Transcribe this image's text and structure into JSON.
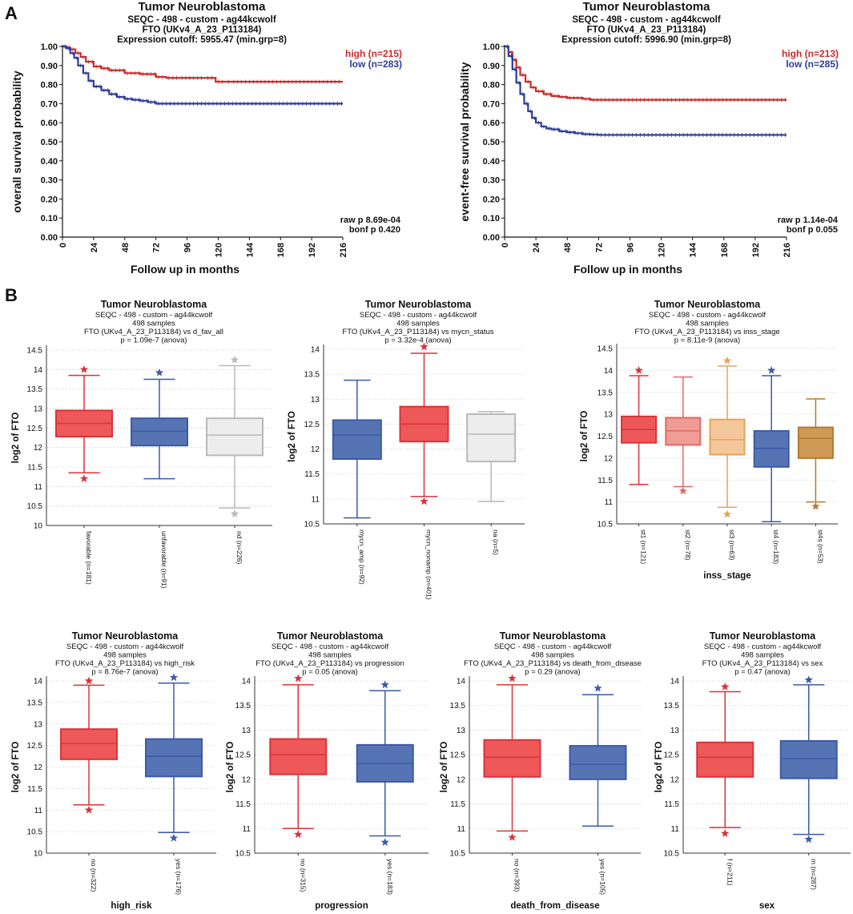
{
  "panel_labels": [
    "A",
    "B"
  ],
  "colors": {
    "red": "#cc2b2b",
    "blue": "#2e3c96",
    "title": "#111111",
    "box_red_fill": "#ee5858",
    "box_red_stroke": "#d8343a",
    "box_blue_fill": "#5674b4",
    "box_blue_stroke": "#3b5aa8",
    "box_gray_fill": "#ededed",
    "box_gray_stroke": "#b9b9b9",
    "box_pink_fill": "#ef9c96",
    "box_pink_stroke": "#e06a66",
    "box_peach_fill": "#f4c79b",
    "box_peach_stroke": "#e5a457",
    "box_gold_fill": "#cf9a55",
    "box_gold_stroke": "#b57a30",
    "grid": "#d9d9d9"
  },
  "chart_data": [
    {
      "type": "line",
      "id": "km1",
      "title": "Tumor Neuroblastoma",
      "subtitle_lines": [
        "SEQC - 498 - custom - ag44kcwolf",
        "FTO (UKv4_A_23_P113184)",
        "Expression cutoff: 5955.47 (min.grp=8)"
      ],
      "xlabel": "Follow up in months",
      "ylabel": "overall survival probability",
      "xlim": [
        0,
        216
      ],
      "ylim": [
        0,
        1
      ],
      "xticks": [
        "0",
        "24",
        "48",
        "72",
        "96",
        "120",
        "144",
        "168",
        "192",
        "216"
      ],
      "yticks": [
        "0.00",
        "0.10",
        "0.20",
        "0.30",
        "0.40",
        "0.50",
        "0.60",
        "0.70",
        "0.80",
        "0.90",
        "1.00"
      ],
      "series": [
        {
          "name": "high (n=215)",
          "color": "#cc2b2b",
          "x": [
            0,
            3,
            6,
            10,
            14,
            18,
            24,
            30,
            36,
            48,
            60,
            72,
            80,
            90,
            110,
            118,
            126,
            130,
            216
          ],
          "y": [
            1.0,
            0.995,
            0.985,
            0.965,
            0.945,
            0.92,
            0.895,
            0.885,
            0.875,
            0.86,
            0.855,
            0.84,
            0.835,
            0.835,
            0.835,
            0.815,
            0.815,
            0.815,
            0.815
          ]
        },
        {
          "name": "low (n=283)",
          "color": "#2e3c96",
          "x": [
            0,
            3,
            6,
            9,
            12,
            16,
            20,
            24,
            30,
            36,
            42,
            48,
            54,
            60,
            66,
            72,
            84,
            96,
            216
          ],
          "y": [
            1.0,
            0.99,
            0.965,
            0.94,
            0.9,
            0.86,
            0.82,
            0.79,
            0.77,
            0.75,
            0.735,
            0.725,
            0.72,
            0.715,
            0.708,
            0.7,
            0.7,
            0.7,
            0.7
          ]
        }
      ],
      "annotations": [
        "raw p 8.69e-04",
        "bonf p 0.420"
      ]
    },
    {
      "type": "line",
      "id": "km2",
      "title": "Tumor Neuroblastoma",
      "subtitle_lines": [
        "SEQC - 498 - custom - ag44kcwolf",
        "FTO (UKv4_A_23_P113184)",
        "Expression cutoff: 5996.90 (min.grp=8)"
      ],
      "xlabel": "Follow up in months",
      "ylabel": "event-free survival probability",
      "xlim": [
        0,
        216
      ],
      "ylim": [
        0,
        1
      ],
      "xticks": [
        "0",
        "24",
        "48",
        "72",
        "96",
        "120",
        "144",
        "168",
        "192",
        "216"
      ],
      "yticks": [
        "0.00",
        "0.10",
        "0.20",
        "0.30",
        "0.40",
        "0.50",
        "0.60",
        "0.70",
        "0.80",
        "0.90",
        "1.00"
      ],
      "series": [
        {
          "name": "high (n=213)",
          "color": "#cc2b2b",
          "x": [
            0,
            3,
            6,
            9,
            12,
            16,
            20,
            24,
            30,
            36,
            42,
            48,
            54,
            60,
            66,
            72,
            216
          ],
          "y": [
            1.0,
            0.97,
            0.93,
            0.89,
            0.85,
            0.815,
            0.785,
            0.765,
            0.75,
            0.74,
            0.735,
            0.73,
            0.73,
            0.725,
            0.72,
            0.72,
            0.72
          ]
        },
        {
          "name": "low (n=285)",
          "color": "#2e3c96",
          "x": [
            0,
            3,
            6,
            9,
            12,
            15,
            18,
            21,
            24,
            28,
            32,
            36,
            42,
            48,
            54,
            60,
            66,
            72,
            216
          ],
          "y": [
            1.0,
            0.95,
            0.88,
            0.81,
            0.75,
            0.7,
            0.66,
            0.625,
            0.6,
            0.58,
            0.57,
            0.565,
            0.555,
            0.55,
            0.545,
            0.54,
            0.538,
            0.536,
            0.536
          ]
        }
      ],
      "annotations": [
        "raw p 1.14e-04",
        "bonf p 0.055"
      ]
    },
    {
      "type": "box",
      "id": "b1",
      "title": "Tumor Neuroblastoma",
      "subtitle_lines": [
        "SEQC - 498 - custom - ag44kcwolf",
        "498 samples",
        "FTO (UKv4_A_23_P113184) vs d_fav_all",
        "p = 1.09e-7 (anova)"
      ],
      "ylabel": "log2 of FTO",
      "xlabel": "",
      "ylim": [
        10,
        14.5
      ],
      "yticks": [
        "10",
        "10.5",
        "11",
        "11.5",
        "12",
        "12.5",
        "13",
        "13.5",
        "14",
        "14.5"
      ],
      "categories": [
        "favorable (n=181)",
        "unfavorable (n=91)",
        "nd (n=226)"
      ],
      "boxes": [
        {
          "color": "red",
          "min": 11.35,
          "q1": 12.28,
          "median": 12.62,
          "q3": 12.95,
          "max": 13.85,
          "out_high": 14.0,
          "out_low": 11.2
        },
        {
          "color": "blue",
          "min": 11.2,
          "q1": 12.05,
          "median": 12.42,
          "q3": 12.75,
          "max": 13.75,
          "out_high": 13.92,
          "out_low": null
        },
        {
          "color": "gray",
          "min": 10.45,
          "q1": 11.8,
          "median": 12.32,
          "q3": 12.75,
          "max": 14.1,
          "out_high": 14.25,
          "out_low": 10.3
        }
      ]
    },
    {
      "type": "box",
      "id": "b2",
      "title": "Tumor Neuroblastoma",
      "subtitle_lines": [
        "SEQC - 498 - custom - ag44kcwolf",
        "498 samples",
        "FTO (UKv4_A_23_P113184) vs mycn_status",
        "p = 3.32e-4 (anova)"
      ],
      "ylabel": "log2 of FTO",
      "xlabel": "",
      "ylim": [
        10.5,
        14
      ],
      "yticks": [
        "10.5",
        "11",
        "11.5",
        "12",
        "12.5",
        "13",
        "13.5",
        "14"
      ],
      "categories": [
        "mycn_amp (n=92)",
        "mycn_nonamp (n=401)",
        "na (n=5)"
      ],
      "boxes": [
        {
          "color": "blue",
          "min": 10.62,
          "q1": 11.8,
          "median": 12.28,
          "q3": 12.58,
          "max": 13.38,
          "out_high": null,
          "out_low": null
        },
        {
          "color": "red",
          "min": 11.05,
          "q1": 12.15,
          "median": 12.5,
          "q3": 12.85,
          "max": 13.92,
          "out_high": 14.05,
          "out_low": 10.95
        },
        {
          "color": "gray",
          "min": 10.95,
          "q1": 11.75,
          "median": 12.3,
          "q3": 12.7,
          "max": 12.75,
          "out_high": null,
          "out_low": null
        }
      ]
    },
    {
      "type": "box",
      "id": "b3",
      "title": "Tumor Neuroblastoma",
      "subtitle_lines": [
        "SEQC - 498 - custom - ag44kcwolf",
        "498 samples",
        "FTO (UKv4_A_23_P113184) vs inss_stage",
        "p = 8.11e-9 (anova)"
      ],
      "ylabel": "log2 of FTO",
      "xlabel": "inss_stage",
      "ylim": [
        10.5,
        14.5
      ],
      "yticks": [
        "10.5",
        "11",
        "11.5",
        "12",
        "12.5",
        "13",
        "13.5",
        "14",
        "14.5"
      ],
      "categories": [
        "st1 (n=121)",
        "st2 (n=78)",
        "st3 (n=63)",
        "st4 (n=183)",
        "st4s (n=53)"
      ],
      "boxes": [
        {
          "color": "red",
          "min": 11.4,
          "q1": 12.35,
          "median": 12.65,
          "q3": 12.95,
          "max": 13.88,
          "out_high": 14.0,
          "out_low": null
        },
        {
          "color": "pink",
          "min": 11.35,
          "q1": 12.3,
          "median": 12.62,
          "q3": 12.92,
          "max": 13.85,
          "out_high": null,
          "out_low": 11.25
        },
        {
          "color": "peach",
          "min": 10.88,
          "q1": 12.08,
          "median": 12.42,
          "q3": 12.88,
          "max": 14.1,
          "out_high": 14.22,
          "out_low": 10.72
        },
        {
          "color": "blue",
          "min": 10.55,
          "q1": 11.8,
          "median": 12.22,
          "q3": 12.62,
          "max": 13.88,
          "out_high": 14.0,
          "out_low": null
        },
        {
          "color": "gold",
          "min": 11.0,
          "q1": 12.0,
          "median": 12.45,
          "q3": 12.7,
          "max": 13.35,
          "out_high": null,
          "out_low": 10.9
        }
      ]
    },
    {
      "type": "box",
      "id": "b4",
      "title": "Tumor Neuroblastoma",
      "subtitle_lines": [
        "SEQC - 498 - custom - ag44kcwolf",
        "498 samples",
        "FTO (UKv4_A_23_P113184) vs high_risk",
        "p = 8.76e-7 (anova)"
      ],
      "ylabel": "log2 of FTO",
      "xlabel": "high_risk",
      "ylim": [
        10,
        14
      ],
      "yticks": [
        "10",
        "10.5",
        "11",
        "11.5",
        "12",
        "12.5",
        "13",
        "13.5",
        "14"
      ],
      "categories": [
        "no (n=322)",
        "yes (n=176)"
      ],
      "boxes": [
        {
          "color": "red",
          "min": 11.12,
          "q1": 12.18,
          "median": 12.55,
          "q3": 12.88,
          "max": 13.9,
          "out_high": 14.0,
          "out_low": 11.0
        },
        {
          "color": "blue",
          "min": 10.48,
          "q1": 11.78,
          "median": 12.25,
          "q3": 12.65,
          "max": 13.95,
          "out_high": 14.08,
          "out_low": 10.35
        }
      ]
    },
    {
      "type": "box",
      "id": "b5",
      "title": "Tumor Neuroblastoma",
      "subtitle_lines": [
        "SEQC - 498 - custom - ag44kcwolf",
        "498 samples",
        "FTO (UKv4_A_23_P113184) vs progression",
        "p = 0.05 (anova)"
      ],
      "ylabel": "log2 of FTO",
      "xlabel": "progression",
      "ylim": [
        10.5,
        14
      ],
      "yticks": [
        "10.5",
        "11",
        "11.5",
        "12",
        "12.5",
        "13",
        "13.5",
        "14"
      ],
      "categories": [
        "no (n=315)",
        "yes (n=183)"
      ],
      "boxes": [
        {
          "color": "red",
          "min": 11.0,
          "q1": 12.1,
          "median": 12.5,
          "q3": 12.82,
          "max": 13.92,
          "out_high": 14.05,
          "out_low": 10.88
        },
        {
          "color": "blue",
          "min": 10.85,
          "q1": 11.95,
          "median": 12.32,
          "q3": 12.7,
          "max": 13.8,
          "out_high": 13.92,
          "out_low": 10.72
        }
      ]
    },
    {
      "type": "box",
      "id": "b6",
      "title": "Tumor Neuroblastoma",
      "subtitle_lines": [
        "SEQC - 498 - custom - ag44kcwolf",
        "498 samples",
        "FTO (UKv4_A_23_P113184) vs death_from_disease",
        "p = 0.29 (anova)"
      ],
      "ylabel": "log2 of FTO",
      "xlabel": "death_from_disease",
      "ylim": [
        10.5,
        14
      ],
      "yticks": [
        "10.5",
        "11",
        "11.5",
        "12",
        "12.5",
        "13",
        "13.5",
        "14"
      ],
      "categories": [
        "no (n=393)",
        "yes (n=105)"
      ],
      "boxes": [
        {
          "color": "red",
          "min": 10.95,
          "q1": 12.05,
          "median": 12.45,
          "q3": 12.8,
          "max": 13.92,
          "out_high": 14.05,
          "out_low": 10.82
        },
        {
          "color": "blue",
          "min": 11.05,
          "q1": 12.0,
          "median": 12.3,
          "q3": 12.68,
          "max": 13.72,
          "out_high": 13.85,
          "out_low": null
        }
      ]
    },
    {
      "type": "box",
      "id": "b7",
      "title": "Tumor Neuroblastoma",
      "subtitle_lines": [
        "SEQC - 498 - custom - ag44kcwolf",
        "498 samples",
        "FTO (UKv4_A_23_P113184) vs sex",
        "p = 0.47 (anova)"
      ],
      "ylabel": "log2 of FTO",
      "xlabel": "sex",
      "ylim": [
        10.5,
        14
      ],
      "yticks": [
        "10.5",
        "11",
        "11.5",
        "12",
        "12.5",
        "13",
        "13.5",
        "14"
      ],
      "categories": [
        "f (n=211)",
        "m (n=287)"
      ],
      "boxes": [
        {
          "color": "red",
          "min": 11.02,
          "q1": 12.05,
          "median": 12.45,
          "q3": 12.75,
          "max": 13.78,
          "out_high": 13.88,
          "out_low": 10.9
        },
        {
          "color": "blue",
          "min": 10.88,
          "q1": 12.02,
          "median": 12.42,
          "q3": 12.78,
          "max": 13.92,
          "out_high": 14.02,
          "out_low": 10.78
        }
      ]
    }
  ]
}
